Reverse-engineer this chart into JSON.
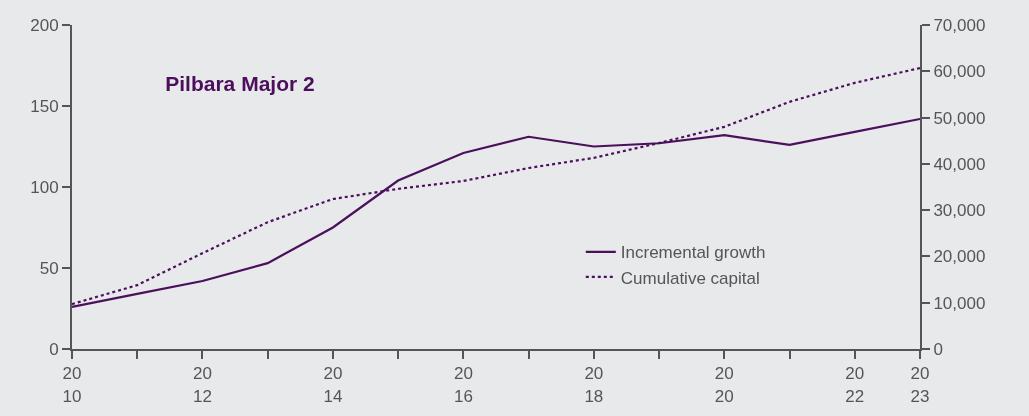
{
  "chart_data": {
    "type": "line",
    "title": "Pilbara Major 2",
    "categories": [
      "20\n10",
      null,
      "20\n12",
      null,
      "20\n14",
      null,
      "20\n16",
      null,
      "20\n18",
      null,
      "20\n20",
      null,
      "20\n22",
      "20\n23"
    ],
    "series": [
      {
        "name": "Incremental growth",
        "color": "#4b0f5c",
        "line_style": "solid",
        "values": [
          26,
          34,
          42,
          53,
          75,
          104,
          121,
          131,
          125,
          127,
          132,
          126,
          134,
          142
        ]
      },
      {
        "name": "Cumulative capital",
        "color": "#4b0f5c",
        "line_style": "dotted",
        "axis": "y2",
        "values": [
          9700,
          13800,
          20700,
          27400,
          32400,
          34600,
          36300,
          39100,
          41300,
          44500,
          48000,
          53400,
          57500,
          60700
        ]
      }
    ],
    "ylim": [
      0,
      200
    ],
    "yticks": [
      0,
      50,
      100,
      150,
      200
    ],
    "y2lim": [
      0,
      70000
    ],
    "y2ticks": [
      {
        "value": 0,
        "label": "0"
      },
      {
        "value": 10000,
        "label": "10,000"
      },
      {
        "value": 20000,
        "label": "20,000"
      },
      {
        "value": 30000,
        "label": "30,000"
      },
      {
        "value": 40000,
        "label": "40,000"
      },
      {
        "value": 50000,
        "label": "50,000"
      },
      {
        "value": 60000,
        "label": "60,000"
      },
      {
        "value": 70000,
        "label": "70,000"
      }
    ],
    "grid": false,
    "legend": "bottom right",
    "marker": "none"
  }
}
